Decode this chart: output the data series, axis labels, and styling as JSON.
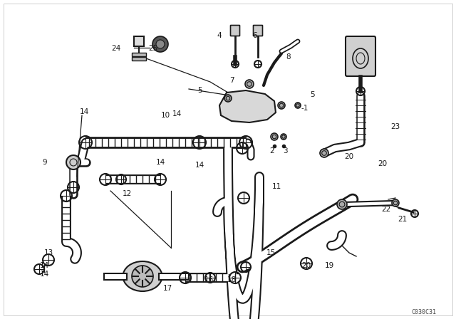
{
  "bg_color": "#ffffff",
  "line_color": "#1a1a1a",
  "fig_width": 6.4,
  "fig_height": 4.48,
  "dpi": 100,
  "watermark": "C030C31",
  "border_color": "#cccccc"
}
